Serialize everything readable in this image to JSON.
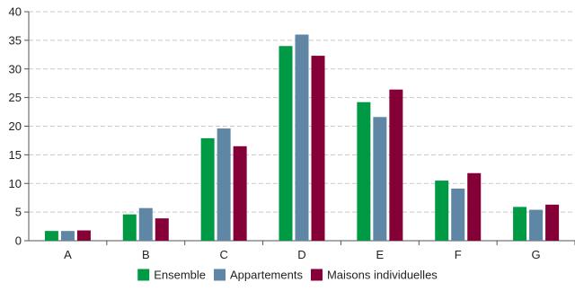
{
  "chart_data": {
    "type": "bar",
    "title": "",
    "xlabel": "",
    "ylabel": "",
    "categories": [
      "A",
      "B",
      "C",
      "D",
      "E",
      "F",
      "G"
    ],
    "ylim": [
      0,
      40
    ],
    "yticks": [
      0,
      5,
      10,
      15,
      20,
      25,
      30,
      35,
      40
    ],
    "grid": true,
    "legend_position": "bottom",
    "series": [
      {
        "name": "Ensemble",
        "color": "#009a44",
        "values": [
          1.7,
          4.6,
          17.9,
          34.0,
          24.2,
          10.5,
          5.9
        ]
      },
      {
        "name": "Appartements",
        "color": "#5f86a5",
        "values": [
          1.7,
          5.7,
          19.6,
          36.0,
          21.6,
          9.1,
          5.4
        ]
      },
      {
        "name": "Maisons individuelles",
        "color": "#860038",
        "values": [
          1.8,
          3.9,
          16.5,
          32.3,
          26.4,
          11.8,
          6.3
        ]
      }
    ]
  }
}
